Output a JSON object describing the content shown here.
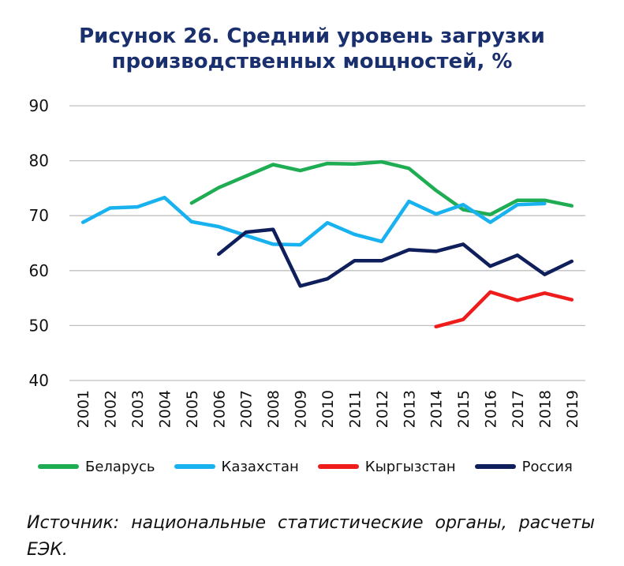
{
  "chart_data": {
    "type": "line",
    "title": "Рисунок 26. Средний уровень загрузки производственных мощностей, %",
    "title_lines": [
      "Рисунок 26. Средний уровень загрузки",
      "производственных мощностей, %"
    ],
    "x": [
      "2001",
      "2002",
      "2003",
      "2004",
      "2005",
      "2006",
      "2007",
      "2008",
      "2009",
      "2010",
      "2011",
      "2012",
      "2013",
      "2014",
      "2015",
      "2016",
      "2017",
      "2018",
      "2019"
    ],
    "ylim": [
      40,
      90
    ],
    "yticks": [
      40,
      50,
      60,
      70,
      80,
      90
    ],
    "grid": true,
    "legend_position": "bottom",
    "series": [
      {
        "name": "Беларусь",
        "color": "#1fad54",
        "values": [
          null,
          null,
          null,
          null,
          72.3,
          75.1,
          77.2,
          79.3,
          78.2,
          79.5,
          79.4,
          79.8,
          78.6,
          74.6,
          71.1,
          70.2,
          72.8,
          72.8,
          71.8
        ]
      },
      {
        "name": "Казахстан",
        "color": "#19b2f0",
        "values": [
          68.8,
          71.4,
          71.6,
          73.3,
          68.9,
          68.0,
          66.4,
          64.8,
          64.7,
          68.7,
          66.6,
          65.3,
          72.6,
          70.3,
          72.0,
          68.8,
          72.0,
          72.2,
          null
        ]
      },
      {
        "name": "Кыргызстан",
        "color": "#ef1c1c",
        "values": [
          null,
          null,
          null,
          null,
          null,
          null,
          null,
          null,
          null,
          null,
          null,
          null,
          null,
          49.8,
          51.1,
          56.1,
          54.6,
          55.9,
          54.7
        ]
      },
      {
        "name": "Россия",
        "color": "#0f1f5c",
        "values": [
          null,
          null,
          null,
          null,
          null,
          63.0,
          67.0,
          67.5,
          57.2,
          58.5,
          61.8,
          61.8,
          63.8,
          63.5,
          64.8,
          60.8,
          62.8,
          59.3,
          61.7
        ]
      }
    ]
  },
  "source_note": "Источник: национальные статистические органы, расчеты ЕЭК."
}
